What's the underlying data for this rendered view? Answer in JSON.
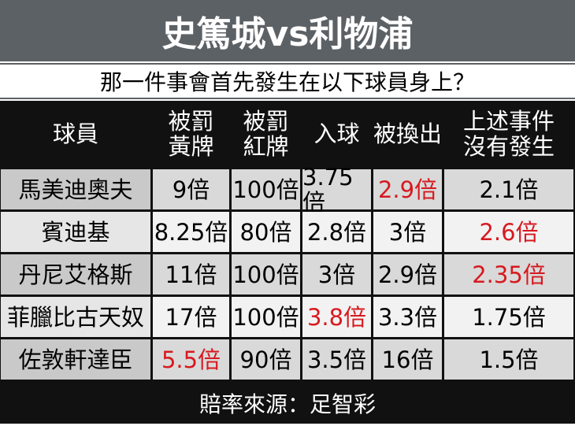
{
  "header": {
    "title": "史篤城vs利物浦",
    "subtitle": "那一件事會首先發生在以下球員身上？"
  },
  "table": {
    "columns": [
      [
        "球員"
      ],
      [
        "被罰",
        "黃牌"
      ],
      [
        "被罰",
        "紅牌"
      ],
      [
        "入球"
      ],
      [
        "被換出"
      ],
      [
        "上述事件",
        "沒有發生"
      ]
    ],
    "rows": [
      [
        "馬美迪奧夫",
        "9倍",
        "100倍",
        "3.75倍",
        {
          "text": "2.9倍",
          "color": "#d7191f"
        },
        "2.1倍"
      ],
      [
        "賓迪基",
        "8.25倍",
        "80倍",
        "2.8倍",
        "3倍",
        {
          "text": "2.6倍",
          "color": "#d7191f"
        }
      ],
      [
        "丹尼艾格斯",
        "11倍",
        "100倍",
        "3倍",
        "2.9倍",
        {
          "text": "2.35倍",
          "color": "#d7191f"
        }
      ],
      [
        "菲臘比古天奴",
        "17倍",
        "100倍",
        {
          "text": "3.8倍",
          "color": "#d7191f"
        },
        "3.3倍",
        "1.75倍"
      ],
      [
        "佐敦軒達臣",
        {
          "text": "5.5倍",
          "color": "#d7191f"
        },
        "90倍",
        "3.5倍",
        "16倍",
        "1.5倍"
      ]
    ]
  },
  "footer": {
    "source": "賠率來源：足智彩"
  }
}
